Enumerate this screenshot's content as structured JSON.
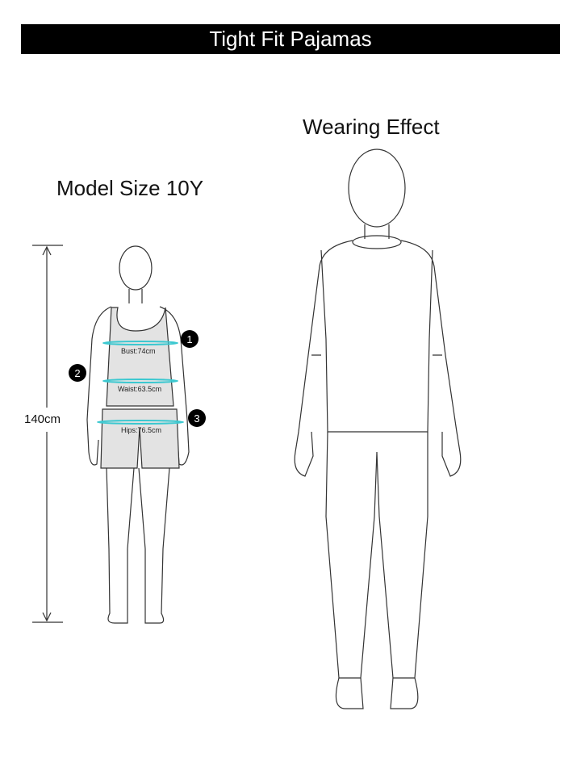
{
  "title": "Tight Fit Pajamas",
  "left": {
    "heading": "Model Size 10Y",
    "height_label": "140cm",
    "measurements": [
      {
        "number": "1",
        "label": "Bust:74cm"
      },
      {
        "number": "2",
        "label": "Waist:63.5cm"
      },
      {
        "number": "3",
        "label": "Hips:76.5cm"
      }
    ]
  },
  "right": {
    "heading": "Wearing Effect"
  },
  "colors": {
    "banner": "#000000",
    "measure_line": "#3cc8d0",
    "garment_fill": "#e3e3e3"
  }
}
